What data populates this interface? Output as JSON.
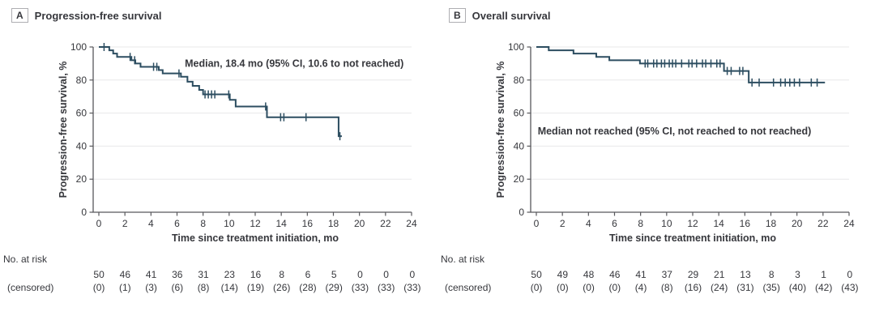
{
  "figure": {
    "risk_label_line1": "No. at risk",
    "risk_label_line2": "(censored)"
  },
  "chart_data": [
    {
      "type": "line",
      "subtype": "kaplan-meier-step",
      "panel_label": "A",
      "title": "Progression-free survival",
      "xlabel": "Time since treatment initiation, mo",
      "ylabel": "Progression-free survival, %",
      "xlim": [
        0,
        24
      ],
      "ylim": [
        0,
        100
      ],
      "xticks": [
        0,
        2,
        4,
        6,
        8,
        10,
        12,
        14,
        16,
        18,
        20,
        22,
        24
      ],
      "yticks": [
        0,
        20,
        40,
        60,
        80,
        100
      ],
      "grid": true,
      "legend": "none",
      "line_color": "#2c4d60",
      "annotation": {
        "text": "Median, 18.4 mo (95% CI, 10.6 to not reached)",
        "tx": 15,
        "ty": 88
      },
      "steps": [
        [
          0,
          100
        ],
        [
          0.8,
          98
        ],
        [
          1.1,
          96
        ],
        [
          1.4,
          94
        ],
        [
          2.5,
          92
        ],
        [
          2.8,
          90
        ],
        [
          3.2,
          88
        ],
        [
          4.6,
          86
        ],
        [
          4.9,
          84
        ],
        [
          6.3,
          82
        ],
        [
          6.8,
          79
        ],
        [
          7.2,
          76.5
        ],
        [
          7.7,
          74
        ],
        [
          8.0,
          71.3
        ],
        [
          10.05,
          68
        ],
        [
          10.5,
          64
        ],
        [
          12.9,
          57.5
        ],
        [
          18.4,
          46
        ]
      ],
      "end_t": 18.65,
      "censor_times": [
        0.4,
        2.4,
        2.75,
        4.2,
        4.45,
        6.15,
        8.15,
        8.4,
        8.65,
        8.9,
        9.97,
        12.8,
        13.95,
        14.2,
        15.9,
        18.5
      ],
      "at_risk": [
        50,
        46,
        41,
        36,
        31,
        23,
        16,
        8,
        6,
        5,
        0,
        0,
        0
      ],
      "censored": [
        "(0)",
        "(1)",
        "(3)",
        "(6)",
        "(8)",
        "(14)",
        "(19)",
        "(26)",
        "(28)",
        "(29)",
        "(33)",
        "(33)",
        "(33)"
      ]
    },
    {
      "type": "line",
      "subtype": "kaplan-meier-step",
      "panel_label": "B",
      "title": "Overall survival",
      "xlabel": "Time since treatment initiation, mo",
      "ylabel": "Progression-free survival, %",
      "xlim": [
        0,
        24
      ],
      "ylim": [
        0,
        100
      ],
      "xticks": [
        0,
        2,
        4,
        6,
        8,
        10,
        12,
        14,
        16,
        18,
        20,
        22,
        24
      ],
      "yticks": [
        0,
        20,
        40,
        60,
        80,
        100
      ],
      "grid": true,
      "legend": "none",
      "line_color": "#2c4d60",
      "annotation": {
        "text": "Median not reached (95% CI, not reached to not reached)",
        "tx": 10.6,
        "ty": 47
      },
      "steps": [
        [
          0,
          100
        ],
        [
          0.95,
          98
        ],
        [
          2.85,
          96
        ],
        [
          4.6,
          94
        ],
        [
          5.6,
          92
        ],
        [
          7.95,
          90
        ],
        [
          14.4,
          85.5
        ],
        [
          16.3,
          78.5
        ]
      ],
      "end_t": 22.15,
      "censor_times": [
        8.35,
        8.55,
        9.0,
        9.25,
        9.6,
        9.85,
        10.2,
        10.45,
        10.7,
        11.15,
        11.7,
        11.95,
        12.3,
        12.75,
        13.0,
        13.4,
        13.85,
        14.1,
        14.65,
        14.95,
        15.6,
        15.85,
        16.55,
        17.1,
        18.2,
        18.75,
        19.1,
        19.45,
        19.8,
        20.2,
        21.1,
        21.55
      ],
      "at_risk": [
        50,
        49,
        48,
        46,
        41,
        37,
        29,
        21,
        13,
        8,
        3,
        1,
        0
      ],
      "censored": [
        "(0)",
        "(0)",
        "(0)",
        "(0)",
        "(4)",
        "(8)",
        "(16)",
        "(24)",
        "(31)",
        "(35)",
        "(40)",
        "(42)",
        "(43)"
      ]
    }
  ]
}
